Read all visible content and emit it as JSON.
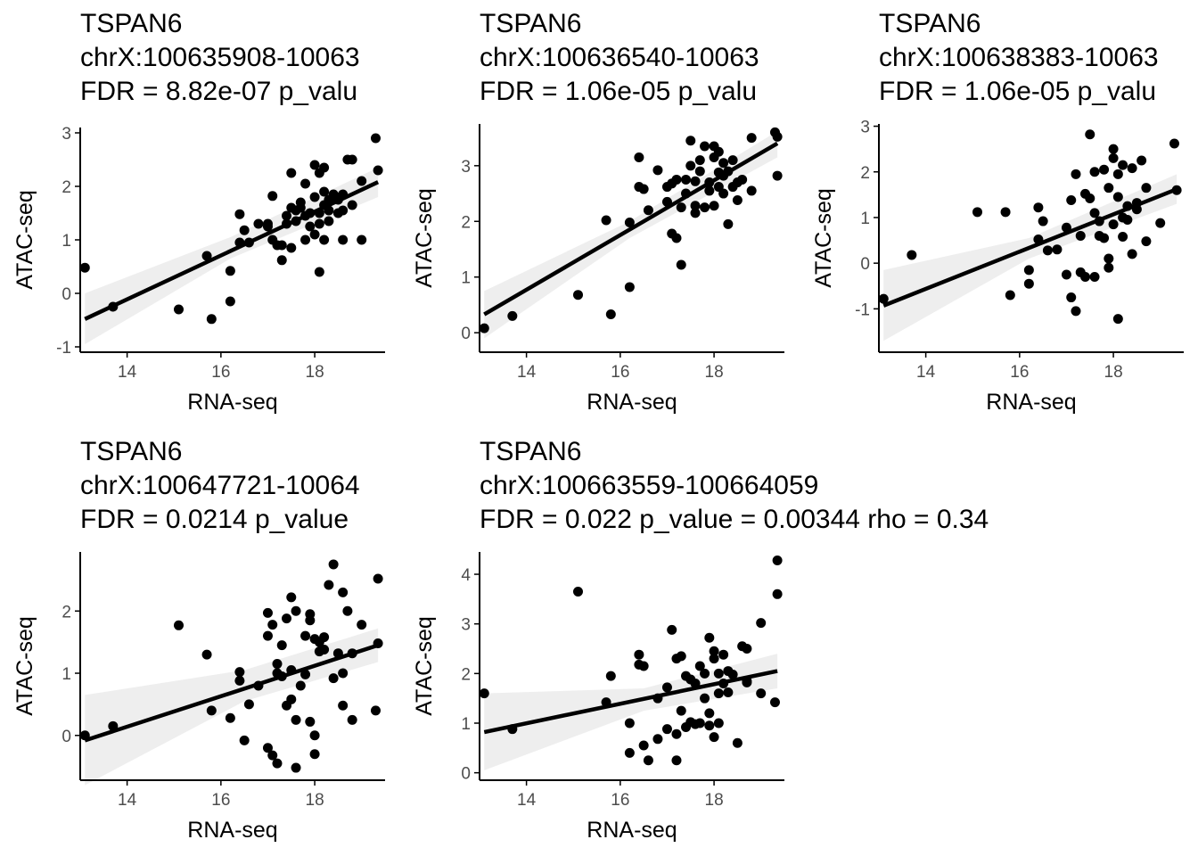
{
  "colors": {
    "point": "#000000",
    "line": "#000000",
    "band": "#ebebeb",
    "axis": "#000000",
    "tick_text": "#4d4d4d"
  },
  "chart_data": [
    {
      "type": "scatter",
      "title_lines": [
        "TSPAN6",
        "chrX:100635908-10063",
        "FDR = 8.82e-07 p_valu"
      ],
      "xlabel": "RNA-seq",
      "ylabel": "ATAC-seq",
      "xlim": [
        13.0,
        19.5
      ],
      "ylim": [
        -1.1,
        3.1
      ],
      "xticks": [
        14,
        16,
        18
      ],
      "yticks": [
        -1,
        0,
        1,
        2,
        3
      ],
      "fit": {
        "x": [
          13.1,
          19.35
        ],
        "y": [
          -0.48,
          2.08
        ]
      },
      "band": {
        "x": [
          13.1,
          16.2,
          19.35
        ],
        "upper": [
          0.0,
          1.05,
          2.35
        ],
        "lower": [
          -0.95,
          0.65,
          1.8
        ]
      },
      "points": [
        [
          13.1,
          0.48
        ],
        [
          13.7,
          -0.25
        ],
        [
          15.1,
          -0.3
        ],
        [
          15.7,
          0.7
        ],
        [
          15.8,
          -0.48
        ],
        [
          16.2,
          0.42
        ],
        [
          16.2,
          -0.15
        ],
        [
          16.4,
          1.48
        ],
        [
          16.4,
          0.95
        ],
        [
          16.5,
          1.18
        ],
        [
          16.6,
          0.95
        ],
        [
          16.8,
          1.3
        ],
        [
          17.0,
          1.3
        ],
        [
          17.0,
          1.25
        ],
        [
          17.1,
          1.82
        ],
        [
          17.1,
          1.0
        ],
        [
          17.2,
          0.9
        ],
        [
          17.3,
          0.62
        ],
        [
          17.3,
          0.9
        ],
        [
          17.4,
          1.45
        ],
        [
          17.4,
          1.3
        ],
        [
          17.5,
          0.85
        ],
        [
          17.5,
          1.6
        ],
        [
          17.5,
          2.25
        ],
        [
          17.6,
          1.55
        ],
        [
          17.6,
          1.35
        ],
        [
          17.7,
          1.7
        ],
        [
          17.7,
          1.6
        ],
        [
          17.8,
          2.05
        ],
        [
          17.8,
          1.0
        ],
        [
          17.9,
          1.5
        ],
        [
          17.9,
          1.25
        ],
        [
          18.0,
          2.4
        ],
        [
          18.0,
          1.8
        ],
        [
          18.0,
          1.1
        ],
        [
          18.1,
          2.25
        ],
        [
          18.1,
          1.5
        ],
        [
          18.1,
          0.4
        ],
        [
          18.1,
          1.3
        ],
        [
          18.2,
          2.35
        ],
        [
          18.2,
          1.9
        ],
        [
          18.2,
          1.65
        ],
        [
          18.2,
          1.0
        ],
        [
          18.3,
          1.55
        ],
        [
          18.3,
          1.35
        ],
        [
          18.4,
          1.85
        ],
        [
          18.5,
          1.75
        ],
        [
          18.5,
          1.5
        ],
        [
          18.6,
          1.85
        ],
        [
          18.6,
          1.55
        ],
        [
          18.6,
          1.0
        ],
        [
          18.7,
          2.5
        ],
        [
          18.8,
          2.5
        ],
        [
          18.8,
          1.65
        ],
        [
          19.0,
          1.0
        ],
        [
          19.0,
          2.1
        ],
        [
          19.3,
          2.9
        ],
        [
          19.35,
          2.3
        ],
        [
          18.3,
          1.75
        ],
        [
          17.8,
          1.45
        ]
      ]
    },
    {
      "type": "scatter",
      "title_lines": [
        "TSPAN6",
        "chrX:100636540-10063",
        "FDR = 1.06e-05 p_valu"
      ],
      "xlabel": "RNA-seq",
      "ylabel": "ATAC-seq",
      "xlim": [
        13.0,
        19.5
      ],
      "ylim": [
        -0.35,
        3.75
      ],
      "xticks": [
        14,
        16,
        18
      ],
      "yticks": [
        0,
        1,
        2,
        3
      ],
      "fit": {
        "x": [
          13.1,
          19.35
        ],
        "y": [
          0.33,
          3.4
        ]
      },
      "band": {
        "x": [
          13.1,
          16.2,
          19.35
        ],
        "upper": [
          0.75,
          2.0,
          3.62
        ],
        "lower": [
          -0.1,
          1.7,
          3.15
        ]
      },
      "points": [
        [
          13.1,
          0.08
        ],
        [
          13.7,
          0.3
        ],
        [
          15.1,
          0.68
        ],
        [
          15.7,
          2.02
        ],
        [
          15.8,
          0.33
        ],
        [
          16.2,
          1.98
        ],
        [
          16.2,
          0.82
        ],
        [
          16.4,
          3.15
        ],
        [
          16.4,
          2.62
        ],
        [
          16.5,
          2.58
        ],
        [
          16.6,
          2.2
        ],
        [
          16.8,
          2.92
        ],
        [
          17.0,
          2.62
        ],
        [
          17.0,
          2.35
        ],
        [
          17.1,
          2.68
        ],
        [
          17.1,
          1.78
        ],
        [
          17.2,
          2.75
        ],
        [
          17.2,
          1.7
        ],
        [
          17.3,
          1.22
        ],
        [
          17.3,
          2.25
        ],
        [
          17.4,
          2.75
        ],
        [
          17.4,
          2.5
        ],
        [
          17.5,
          3.0
        ],
        [
          17.5,
          3.45
        ],
        [
          17.6,
          2.72
        ],
        [
          17.6,
          2.28
        ],
        [
          17.7,
          3.1
        ],
        [
          17.7,
          2.9
        ],
        [
          17.8,
          3.35
        ],
        [
          17.8,
          2.25
        ],
        [
          17.9,
          2.7
        ],
        [
          17.9,
          2.55
        ],
        [
          18.0,
          3.35
        ],
        [
          18.0,
          3.15
        ],
        [
          18.0,
          2.28
        ],
        [
          18.1,
          3.25
        ],
        [
          18.1,
          2.88
        ],
        [
          18.1,
          2.62
        ],
        [
          18.2,
          3.05
        ],
        [
          18.2,
          2.82
        ],
        [
          18.2,
          2.5
        ],
        [
          18.3,
          2.9
        ],
        [
          18.3,
          1.95
        ],
        [
          18.4,
          2.62
        ],
        [
          18.5,
          2.7
        ],
        [
          18.5,
          2.38
        ],
        [
          18.6,
          2.75
        ],
        [
          18.8,
          3.5
        ],
        [
          18.8,
          2.55
        ],
        [
          19.3,
          3.6
        ],
        [
          19.35,
          3.52
        ],
        [
          19.35,
          2.82
        ],
        [
          17.6,
          2.15
        ],
        [
          18.4,
          3.1
        ]
      ]
    },
    {
      "type": "scatter",
      "title_lines": [
        "TSPAN6",
        "chrX:100638383-10063",
        "FDR = 1.06e-05 p_valu"
      ],
      "xlabel": "RNA-seq",
      "ylabel": "ATAC-seq",
      "xlim": [
        13.0,
        19.5
      ],
      "ylim": [
        -1.95,
        3.05
      ],
      "xticks": [
        14,
        16,
        18
      ],
      "yticks": [
        -1,
        0,
        1,
        2,
        3
      ],
      "fit": {
        "x": [
          13.1,
          19.35
        ],
        "y": [
          -0.93,
          1.62
        ]
      },
      "band": {
        "x": [
          13.1,
          16.2,
          19.35
        ],
        "upper": [
          -0.15,
          0.55,
          1.95
        ],
        "lower": [
          -1.7,
          0.1,
          1.3
        ]
      },
      "points": [
        [
          13.1,
          -0.78
        ],
        [
          13.7,
          0.18
        ],
        [
          15.1,
          1.12
        ],
        [
          15.7,
          1.12
        ],
        [
          15.8,
          -0.7
        ],
        [
          16.2,
          -0.45
        ],
        [
          16.2,
          -0.15
        ],
        [
          16.4,
          1.22
        ],
        [
          16.4,
          0.52
        ],
        [
          16.5,
          0.92
        ],
        [
          16.6,
          0.28
        ],
        [
          16.8,
          0.3
        ],
        [
          17.0,
          0.78
        ],
        [
          17.0,
          -0.25
        ],
        [
          17.1,
          1.38
        ],
        [
          17.1,
          -0.75
        ],
        [
          17.2,
          1.95
        ],
        [
          17.2,
          -1.05
        ],
        [
          17.3,
          0.6
        ],
        [
          17.3,
          -0.2
        ],
        [
          17.4,
          1.52
        ],
        [
          17.4,
          -0.3
        ],
        [
          17.5,
          1.42
        ],
        [
          17.5,
          2.82
        ],
        [
          17.6,
          2.0
        ],
        [
          17.6,
          1.1
        ],
        [
          17.6,
          -0.3
        ],
        [
          17.7,
          0.92
        ],
        [
          17.7,
          0.6
        ],
        [
          17.8,
          2.05
        ],
        [
          17.8,
          0.55
        ],
        [
          17.9,
          1.65
        ],
        [
          17.9,
          0.1
        ],
        [
          18.0,
          2.5
        ],
        [
          18.0,
          2.3
        ],
        [
          18.0,
          0.85
        ],
        [
          18.1,
          1.95
        ],
        [
          18.1,
          1.45
        ],
        [
          18.1,
          -1.22
        ],
        [
          18.2,
          2.15
        ],
        [
          18.2,
          1.0
        ],
        [
          18.2,
          0.58
        ],
        [
          18.3,
          1.25
        ],
        [
          18.3,
          0.95
        ],
        [
          18.4,
          2.08
        ],
        [
          18.5,
          1.32
        ],
        [
          18.5,
          1.18
        ],
        [
          18.6,
          2.25
        ],
        [
          18.7,
          1.65
        ],
        [
          18.7,
          0.48
        ],
        [
          19.0,
          0.88
        ],
        [
          19.3,
          2.62
        ],
        [
          19.35,
          1.6
        ],
        [
          18.4,
          0.2
        ],
        [
          17.9,
          -0.1
        ]
      ]
    },
    {
      "type": "scatter",
      "title_lines": [
        "TSPAN6",
        "chrX:100647721-10064",
        "FDR = 0.0214 p_value"
      ],
      "xlabel": "RNA-seq",
      "ylabel": "ATAC-seq",
      "xlim": [
        13.0,
        19.5
      ],
      "ylim": [
        -0.72,
        2.95
      ],
      "xticks": [
        14,
        16,
        18
      ],
      "yticks": [
        0,
        1,
        2
      ],
      "fit": {
        "x": [
          13.1,
          19.35
        ],
        "y": [
          -0.08,
          1.45
        ]
      },
      "band": {
        "x": [
          13.1,
          16.5,
          19.35
        ],
        "upper": [
          0.65,
          1.05,
          1.72
        ],
        "lower": [
          -0.8,
          0.55,
          1.18
        ]
      },
      "points": [
        [
          13.1,
          0.0
        ],
        [
          13.7,
          0.15
        ],
        [
          15.1,
          1.77
        ],
        [
          15.7,
          1.3
        ],
        [
          15.8,
          0.4
        ],
        [
          16.2,
          0.28
        ],
        [
          16.4,
          1.02
        ],
        [
          16.4,
          0.88
        ],
        [
          16.5,
          -0.08
        ],
        [
          16.6,
          0.5
        ],
        [
          16.8,
          0.8
        ],
        [
          17.0,
          1.97
        ],
        [
          17.0,
          1.6
        ],
        [
          17.0,
          -0.2
        ],
        [
          17.1,
          1.78
        ],
        [
          17.1,
          -0.32
        ],
        [
          17.2,
          1.15
        ],
        [
          17.2,
          -0.45
        ],
        [
          17.3,
          1.45
        ],
        [
          17.3,
          0.95
        ],
        [
          17.4,
          1.88
        ],
        [
          17.4,
          0.48
        ],
        [
          17.5,
          2.22
        ],
        [
          17.5,
          1.05
        ],
        [
          17.5,
          0.58
        ],
        [
          17.6,
          2.0
        ],
        [
          17.6,
          -0.52
        ],
        [
          17.6,
          0.25
        ],
        [
          17.7,
          0.8
        ],
        [
          17.8,
          1.6
        ],
        [
          17.8,
          0.98
        ],
        [
          17.9,
          1.95
        ],
        [
          17.9,
          1.85
        ],
        [
          17.9,
          0.22
        ],
        [
          18.0,
          1.55
        ],
        [
          18.0,
          0.0
        ],
        [
          18.0,
          -0.3
        ],
        [
          18.1,
          1.5
        ],
        [
          18.1,
          1.35
        ],
        [
          18.2,
          1.58
        ],
        [
          18.2,
          1.38
        ],
        [
          18.3,
          2.42
        ],
        [
          18.4,
          2.75
        ],
        [
          18.4,
          0.92
        ],
        [
          18.5,
          1.32
        ],
        [
          18.6,
          2.3
        ],
        [
          18.6,
          0.48
        ],
        [
          18.7,
          2.0
        ],
        [
          18.8,
          1.32
        ],
        [
          18.8,
          0.25
        ],
        [
          19.0,
          1.78
        ],
        [
          19.3,
          0.4
        ],
        [
          19.35,
          2.52
        ],
        [
          19.35,
          1.48
        ],
        [
          18.6,
          1.0
        ],
        [
          17.2,
          1.0
        ]
      ]
    },
    {
      "type": "scatter",
      "title_lines": [
        "TSPAN6",
        "chrX:100663559-100664059",
        "FDR = 0.022 p_value = 0.00344 rho = 0.34"
      ],
      "xlabel": "RNA-seq",
      "ylabel": "ATAC-seq",
      "xlim": [
        13.0,
        19.5
      ],
      "ylim": [
        -0.15,
        4.45
      ],
      "xticks": [
        14,
        16,
        18
      ],
      "yticks": [
        0,
        1,
        2,
        3,
        4
      ],
      "fit": {
        "x": [
          13.1,
          19.35
        ],
        "y": [
          0.82,
          2.05
        ]
      },
      "band": {
        "x": [
          13.1,
          16.5,
          19.35
        ],
        "upper": [
          1.6,
          1.7,
          2.4
        ],
        "lower": [
          0.05,
          1.25,
          1.7
        ]
      },
      "points": [
        [
          13.1,
          1.6
        ],
        [
          13.7,
          0.88
        ],
        [
          15.1,
          3.65
        ],
        [
          15.7,
          1.42
        ],
        [
          15.8,
          1.95
        ],
        [
          16.2,
          1.0
        ],
        [
          16.2,
          0.4
        ],
        [
          16.4,
          2.38
        ],
        [
          16.4,
          2.18
        ],
        [
          16.5,
          2.15
        ],
        [
          16.5,
          0.55
        ],
        [
          16.6,
          0.25
        ],
        [
          16.8,
          0.68
        ],
        [
          16.8,
          1.5
        ],
        [
          17.0,
          1.72
        ],
        [
          17.0,
          0.88
        ],
        [
          17.1,
          2.88
        ],
        [
          17.2,
          2.3
        ],
        [
          17.2,
          0.78
        ],
        [
          17.2,
          0.25
        ],
        [
          17.3,
          2.35
        ],
        [
          17.3,
          1.25
        ],
        [
          17.4,
          1.95
        ],
        [
          17.4,
          0.92
        ],
        [
          17.5,
          1.88
        ],
        [
          17.5,
          1.02
        ],
        [
          17.6,
          1.8
        ],
        [
          17.6,
          0.98
        ],
        [
          17.7,
          2.15
        ],
        [
          17.7,
          1.0
        ],
        [
          17.8,
          2.0
        ],
        [
          17.8,
          1.5
        ],
        [
          17.9,
          2.72
        ],
        [
          17.9,
          1.2
        ],
        [
          17.9,
          0.95
        ],
        [
          18.0,
          2.45
        ],
        [
          18.0,
          2.3
        ],
        [
          18.0,
          0.72
        ],
        [
          18.1,
          2.0
        ],
        [
          18.1,
          1.6
        ],
        [
          18.1,
          1.0
        ],
        [
          18.2,
          2.38
        ],
        [
          18.2,
          1.8
        ],
        [
          18.3,
          2.05
        ],
        [
          18.3,
          1.62
        ],
        [
          18.4,
          1.98
        ],
        [
          18.5,
          0.6
        ],
        [
          18.6,
          2.55
        ],
        [
          18.7,
          2.5
        ],
        [
          18.7,
          1.85
        ],
        [
          19.0,
          3.02
        ],
        [
          19.3,
          1.42
        ],
        [
          19.35,
          4.28
        ],
        [
          19.35,
          3.6
        ],
        [
          18.7,
          1.82
        ],
        [
          19.0,
          1.6
        ]
      ]
    }
  ]
}
